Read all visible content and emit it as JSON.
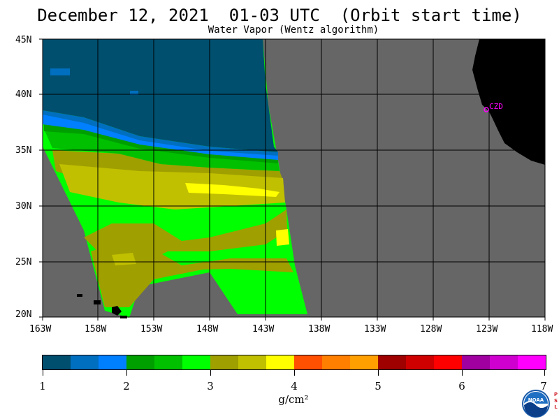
{
  "header": {
    "title": "December 12, 2021  01-03 UTC  (Orbit start time)",
    "subtitle": "Water Vapor (Wentz algorithm)"
  },
  "map": {
    "lat_labels": [
      "45N",
      "40N",
      "35N",
      "30N",
      "25N",
      "20N"
    ],
    "lon_labels": [
      "163W",
      "158W",
      "153W",
      "148W",
      "143W",
      "138W",
      "133W",
      "128W",
      "123W",
      "118W"
    ],
    "station_label": "CZD",
    "colors": {
      "no_data": "#666666",
      "land": "#000000",
      "grid": "#000000",
      "station": "#ff00ff"
    }
  },
  "colorbar": {
    "colors": [
      "#004f6f",
      "#006fbf",
      "#007fff",
      "#009f00",
      "#00c000",
      "#00ff00",
      "#9f9f00",
      "#c0c000",
      "#ffff00",
      "#ff4f00",
      "#ff7f00",
      "#ff9f00",
      "#9f0000",
      "#cf0000",
      "#ff0000",
      "#9f009f",
      "#cf00cf",
      "#ff00ff"
    ],
    "tick_labels": [
      "1",
      "2",
      "3",
      "4",
      "5",
      "6",
      "7"
    ],
    "units": "g/cm²"
  },
  "logo": {
    "name": "NOAA",
    "psl_letters": [
      "P",
      "S",
      "L"
    ]
  }
}
